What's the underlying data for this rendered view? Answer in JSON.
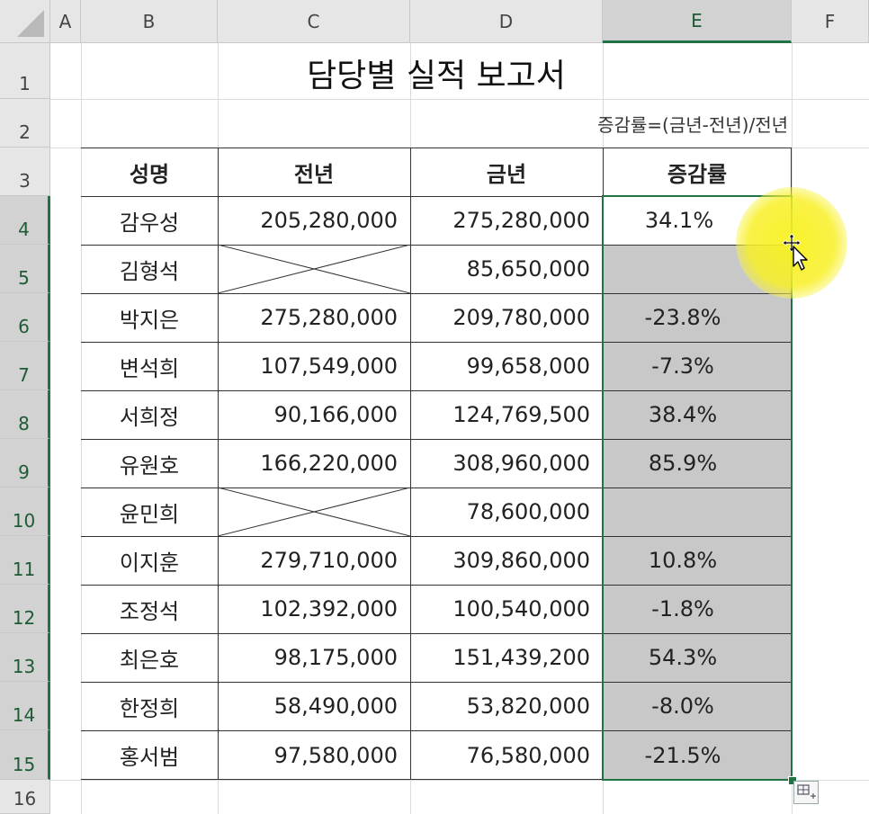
{
  "column_headers": [
    "A",
    "B",
    "C",
    "D",
    "E",
    "F"
  ],
  "row_headers": [
    "1",
    "2",
    "3",
    "4",
    "5",
    "6",
    "7",
    "8",
    "9",
    "10",
    "11",
    "12",
    "13",
    "14",
    "15",
    "16"
  ],
  "sheet": {
    "title": "담당별 실적 보고서",
    "formula_note": "증감률=(금년-전년)/전년",
    "table_headers": [
      "성명",
      "전년",
      "금년",
      "증감률"
    ],
    "rows": [
      {
        "name": "감우성",
        "prev": "205,280,000",
        "curr": "275,280,000",
        "rate": "34.1%"
      },
      {
        "name": "김형석",
        "prev": "",
        "curr": "85,650,000",
        "rate": ""
      },
      {
        "name": "박지은",
        "prev": "275,280,000",
        "curr": "209,780,000",
        "rate": "-23.8%"
      },
      {
        "name": "변석희",
        "prev": "107,549,000",
        "curr": "99,658,000",
        "rate": "-7.3%"
      },
      {
        "name": "서희정",
        "prev": "90,166,000",
        "curr": "124,769,500",
        "rate": "38.4%"
      },
      {
        "name": "유원호",
        "prev": "166,220,000",
        "curr": "308,960,000",
        "rate": "85.9%"
      },
      {
        "name": "윤민희",
        "prev": "",
        "curr": "78,600,000",
        "rate": ""
      },
      {
        "name": "이지훈",
        "prev": "279,710,000",
        "curr": "309,860,000",
        "rate": "10.8%"
      },
      {
        "name": "조정석",
        "prev": "102,392,000",
        "curr": "100,540,000",
        "rate": "-1.8%"
      },
      {
        "name": "최은호",
        "prev": "98,175,000",
        "curr": "151,439,200",
        "rate": "54.3%"
      },
      {
        "name": "한정희",
        "prev": "58,490,000",
        "curr": "53,820,000",
        "rate": "-8.0%"
      },
      {
        "name": "홍서범",
        "prev": "97,580,000",
        "curr": "76,580,000",
        "rate": "-21.5%"
      }
    ]
  },
  "selection": {
    "range": "E4:E15",
    "active_cell": "E4"
  },
  "colors": {
    "accent": "#217346",
    "selection_fill": "#c8c8c8",
    "header_bg": "#e6e6e6",
    "highlight": "#f8f21e"
  },
  "icons": {
    "corner": "select-all-icon",
    "cursor": "move-cursor-icon",
    "quick_analysis": "quick-analysis-icon"
  }
}
